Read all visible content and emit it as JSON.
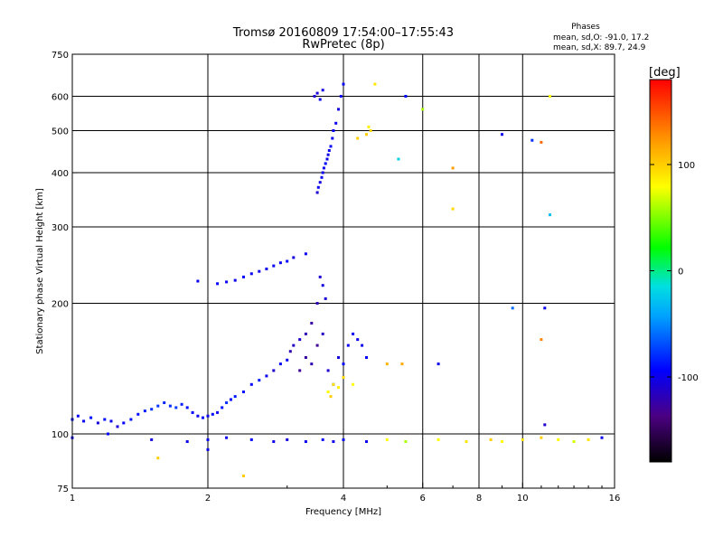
{
  "chart_data": {
    "type": "scatter",
    "title": "Tromsø 20160809 17:54:00–17:55:43",
    "subtitle": "RwPretec (8p)",
    "phases_header": {
      "title": "Phases",
      "line1": "mean, sd,O: -91.0, 17.2",
      "line2": "mean, sd,X: 89.7, 24.9"
    },
    "xlabel": "Frequency [MHz]",
    "ylabel": "Stationary phase Virtual Height [km]",
    "x_scale": "log2",
    "y_scale": "log",
    "xlim": [
      1,
      16
    ],
    "ylim": [
      75,
      750
    ],
    "grid": true,
    "x_ticks": [
      1,
      2,
      4,
      6,
      8,
      10,
      16
    ],
    "x_tick_labels": [
      "1",
      "2",
      "4",
      "6",
      "8",
      "10",
      "16"
    ],
    "y_ticks": [
      75,
      100,
      200,
      300,
      400,
      500,
      600,
      750
    ],
    "y_tick_labels": [
      "75",
      "100",
      "200",
      "300",
      "400",
      "500",
      "600",
      "750"
    ],
    "colorbar": {
      "label": "[deg]",
      "range": [
        -180,
        180
      ],
      "ticks": [
        100,
        0,
        -100
      ],
      "tick_labels": [
        "100",
        "0",
        "-100"
      ]
    },
    "series": [
      {
        "points": [
          [
            1.0,
            108,
            -95
          ],
          [
            1.03,
            110,
            -100
          ],
          [
            1.06,
            107,
            -98
          ],
          [
            1.1,
            109,
            -90
          ],
          [
            1.14,
            106,
            -105
          ],
          [
            1.18,
            108,
            -92
          ],
          [
            1.22,
            107,
            -100
          ],
          [
            1.26,
            104,
            -110
          ],
          [
            1.3,
            106,
            -95
          ],
          [
            1.35,
            108,
            -88
          ],
          [
            1.4,
            111,
            -90
          ],
          [
            1.45,
            113,
            -85
          ],
          [
            1.5,
            114,
            -80
          ],
          [
            1.55,
            116,
            -78
          ],
          [
            1.6,
            118,
            -82
          ],
          [
            1.65,
            116,
            -80
          ],
          [
            1.7,
            115,
            -76
          ],
          [
            1.75,
            117,
            -85
          ],
          [
            1.8,
            115,
            -90
          ],
          [
            1.85,
            112,
            -95
          ],
          [
            1.9,
            110,
            -100
          ],
          [
            1.95,
            109,
            -95
          ],
          [
            2.0,
            110,
            -100
          ],
          [
            2.05,
            111,
            -92
          ],
          [
            2.1,
            112,
            -100
          ],
          [
            2.15,
            115,
            -88
          ],
          [
            2.2,
            118,
            -80
          ],
          [
            2.25,
            120,
            -95
          ],
          [
            2.3,
            122,
            -85
          ],
          [
            2.4,
            125,
            -90
          ],
          [
            2.5,
            130,
            -95
          ],
          [
            2.6,
            133,
            -85
          ],
          [
            2.7,
            136,
            -100
          ],
          [
            2.8,
            140,
            -110
          ],
          [
            2.9,
            145,
            -95
          ],
          [
            3.0,
            148,
            -100
          ],
          [
            3.05,
            155,
            -120
          ],
          [
            3.1,
            160,
            -115
          ],
          [
            3.2,
            165,
            -110
          ],
          [
            3.3,
            170,
            -120
          ],
          [
            3.4,
            180,
            -125
          ],
          [
            3.5,
            200,
            -120
          ],
          [
            3.55,
            230,
            -110
          ],
          [
            3.6,
            220,
            -105
          ],
          [
            3.65,
            205,
            -108
          ],
          [
            3.2,
            140,
            -130
          ],
          [
            3.3,
            150,
            -125
          ],
          [
            3.4,
            145,
            -120
          ],
          [
            3.5,
            160,
            -130
          ],
          [
            3.6,
            170,
            -115
          ],
          [
            3.7,
            140,
            -110
          ],
          [
            3.8,
            130,
            -100
          ],
          [
            3.9,
            150,
            -105
          ],
          [
            4.0,
            145,
            -95
          ],
          [
            4.1,
            160,
            -100
          ],
          [
            4.2,
            170,
            -98
          ],
          [
            4.3,
            165,
            -102
          ],
          [
            4.4,
            160,
            -100
          ],
          [
            4.5,
            150,
            -95
          ]
        ]
      },
      {
        "points": [
          [
            1.9,
            225,
            -100
          ],
          [
            2.1,
            222,
            -95
          ],
          [
            2.2,
            224,
            -98
          ],
          [
            2.3,
            226,
            -100
          ],
          [
            2.4,
            230,
            -95
          ],
          [
            2.5,
            234,
            -98
          ],
          [
            2.6,
            237,
            -102
          ],
          [
            2.7,
            240,
            -100
          ],
          [
            2.8,
            244,
            -98
          ],
          [
            2.9,
            248,
            -100
          ],
          [
            3.0,
            250,
            -95
          ],
          [
            3.1,
            255,
            -105
          ],
          [
            3.3,
            260,
            -100
          ]
        ]
      },
      {
        "points": [
          [
            3.5,
            360,
            -110
          ],
          [
            3.52,
            370,
            -100
          ],
          [
            3.55,
            380,
            -105
          ],
          [
            3.58,
            390,
            -100
          ],
          [
            3.6,
            400,
            -98
          ],
          [
            3.62,
            410,
            -100
          ],
          [
            3.65,
            420,
            -95
          ],
          [
            3.68,
            430,
            -100
          ],
          [
            3.7,
            440,
            -102
          ],
          [
            3.72,
            450,
            -100
          ],
          [
            3.75,
            460,
            -98
          ],
          [
            3.78,
            480,
            -100
          ],
          [
            3.8,
            500,
            -95
          ],
          [
            3.85,
            520,
            -100
          ],
          [
            3.9,
            560,
            -105
          ],
          [
            3.95,
            600,
            -100
          ],
          [
            4.0,
            640,
            -95
          ],
          [
            3.45,
            600,
            -110
          ],
          [
            3.5,
            610,
            -108
          ],
          [
            3.55,
            590,
            -100
          ],
          [
            3.6,
            620,
            -105
          ]
        ]
      },
      {
        "points": [
          [
            3.7,
            125,
            80
          ],
          [
            3.8,
            130,
            90
          ],
          [
            3.9,
            128,
            85
          ],
          [
            4.0,
            135,
            95
          ],
          [
            3.75,
            122,
            100
          ],
          [
            4.5,
            490,
            100
          ],
          [
            4.6,
            500,
            95
          ],
          [
            4.55,
            510,
            85
          ],
          [
            4.7,
            640,
            90
          ],
          [
            5.0,
            145,
            110
          ],
          [
            5.4,
            145,
            115
          ],
          [
            7.0,
            410,
            120
          ],
          [
            7.0,
            330,
            95
          ],
          [
            11.0,
            470,
            140
          ],
          [
            11.5,
            600,
            80
          ],
          [
            11.0,
            165,
            130
          ],
          [
            4.3,
            480,
            100
          ],
          [
            4.2,
            130,
            80
          ]
        ]
      },
      {
        "points": [
          [
            1.0,
            98,
            -100
          ],
          [
            1.2,
            100,
            -95
          ],
          [
            1.5,
            97,
            -105
          ],
          [
            1.8,
            96,
            -100
          ],
          [
            2.0,
            97,
            -98
          ],
          [
            2.2,
            98,
            -100
          ],
          [
            2.5,
            97,
            -95
          ],
          [
            2.8,
            96,
            -100
          ],
          [
            3.0,
            97,
            -105
          ],
          [
            3.3,
            96,
            -100
          ],
          [
            3.6,
            97,
            -98
          ],
          [
            3.8,
            96,
            -100
          ],
          [
            4.0,
            97,
            -95
          ],
          [
            4.5,
            96,
            -100
          ],
          [
            5.0,
            97,
            80
          ],
          [
            5.5,
            96,
            60
          ],
          [
            6.5,
            97,
            80
          ],
          [
            7.5,
            96,
            90
          ],
          [
            8.5,
            97,
            100
          ],
          [
            9.0,
            96,
            80
          ],
          [
            10.0,
            97,
            90
          ],
          [
            11.0,
            98,
            100
          ],
          [
            12.0,
            97,
            80
          ],
          [
            13.0,
            96,
            70
          ],
          [
            14.0,
            97,
            90
          ],
          [
            15.0,
            98,
            -100
          ]
        ]
      },
      {
        "points": [
          [
            5.3,
            430,
            -20
          ],
          [
            5.5,
            600,
            -90
          ],
          [
            6.0,
            560,
            60
          ],
          [
            9.0,
            490,
            -100
          ],
          [
            10.5,
            475,
            -80
          ],
          [
            11.5,
            320,
            -30
          ],
          [
            11.2,
            195,
            -100
          ],
          [
            11.2,
            105,
            -110
          ],
          [
            6.5,
            145,
            -100
          ],
          [
            9.5,
            195,
            -60
          ],
          [
            1.55,
            88,
            100
          ],
          [
            2.4,
            80,
            100
          ],
          [
            2.0,
            92,
            -100
          ]
        ]
      }
    ]
  }
}
